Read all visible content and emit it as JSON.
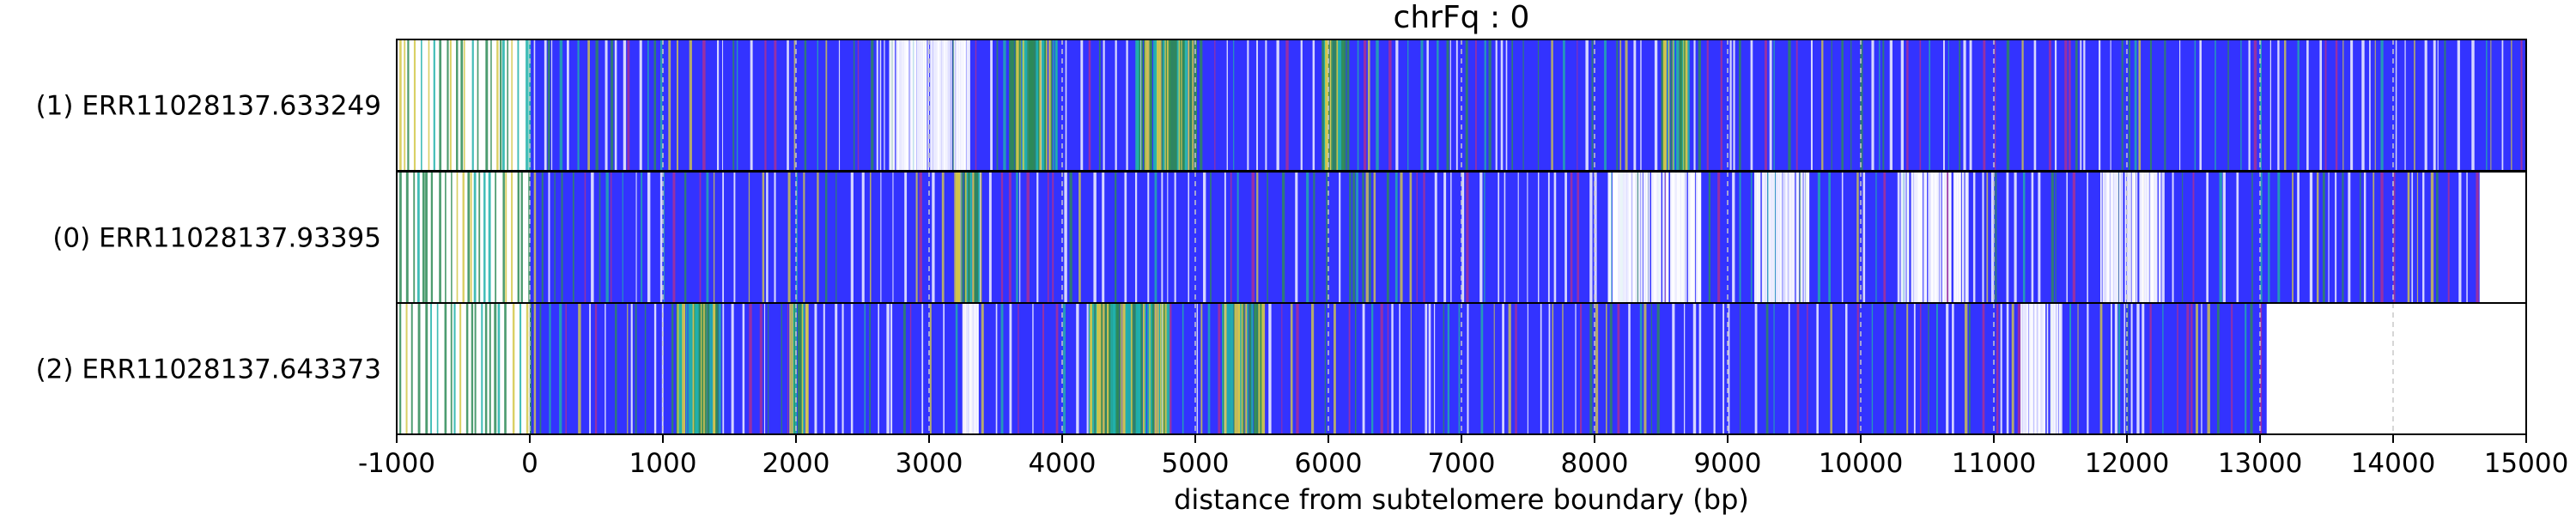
{
  "chart_data": {
    "type": "heatmap",
    "title": "chrFq : 0",
    "xlabel": "distance from subtelomere boundary (bp)",
    "ylabel": "",
    "xlim": [
      -1000,
      15000
    ],
    "xticks": [
      -1000,
      0,
      1000,
      2000,
      3000,
      4000,
      5000,
      6000,
      7000,
      8000,
      9000,
      10000,
      11000,
      12000,
      13000,
      14000,
      15000
    ],
    "xtick_labels": [
      "-1000",
      "0",
      "1000",
      "2000",
      "3000",
      "4000",
      "5000",
      "6000",
      "7000",
      "8000",
      "9000",
      "10000",
      "11000",
      "12000",
      "13000",
      "14000",
      "15000"
    ],
    "grid": "vertical dashed lines at x ticks",
    "colors": {
      "telomere_repeat": "#3333ff",
      "variant_green": "#2e8b57",
      "variant_cyan": "#20b2aa",
      "variant_yellow": "#d4c84a",
      "variant_magenta": "#b03090",
      "gap_white": "#ffffff"
    },
    "series": [
      {
        "name": "(1) ERR11028137.633249",
        "read_end": 15000,
        "dense_variant_regions": [
          [
            3600,
            3950
          ],
          [
            4550,
            5000
          ],
          [
            5950,
            6150
          ],
          [
            8500,
            8700
          ]
        ],
        "white_gap_regions": [
          [
            2700,
            3300
          ]
        ]
      },
      {
        "name": "(0) ERR11028137.93395",
        "read_end": 14650,
        "dense_variant_regions": [
          [
            3200,
            3400
          ]
        ],
        "white_gap_regions": [
          [
            8100,
            8800
          ],
          [
            9200,
            9600
          ],
          [
            10300,
            10800
          ],
          [
            11800,
            12250
          ]
        ]
      },
      {
        "name": "(2) ERR11028137.643373",
        "read_end": 13050,
        "dense_variant_regions": [
          [
            1100,
            1400
          ],
          [
            1950,
            2100
          ],
          [
            4200,
            4800
          ],
          [
            5200,
            5500
          ]
        ],
        "white_gap_regions": [
          [
            3250,
            3350
          ],
          [
            11200,
            11500
          ]
        ]
      }
    ]
  }
}
